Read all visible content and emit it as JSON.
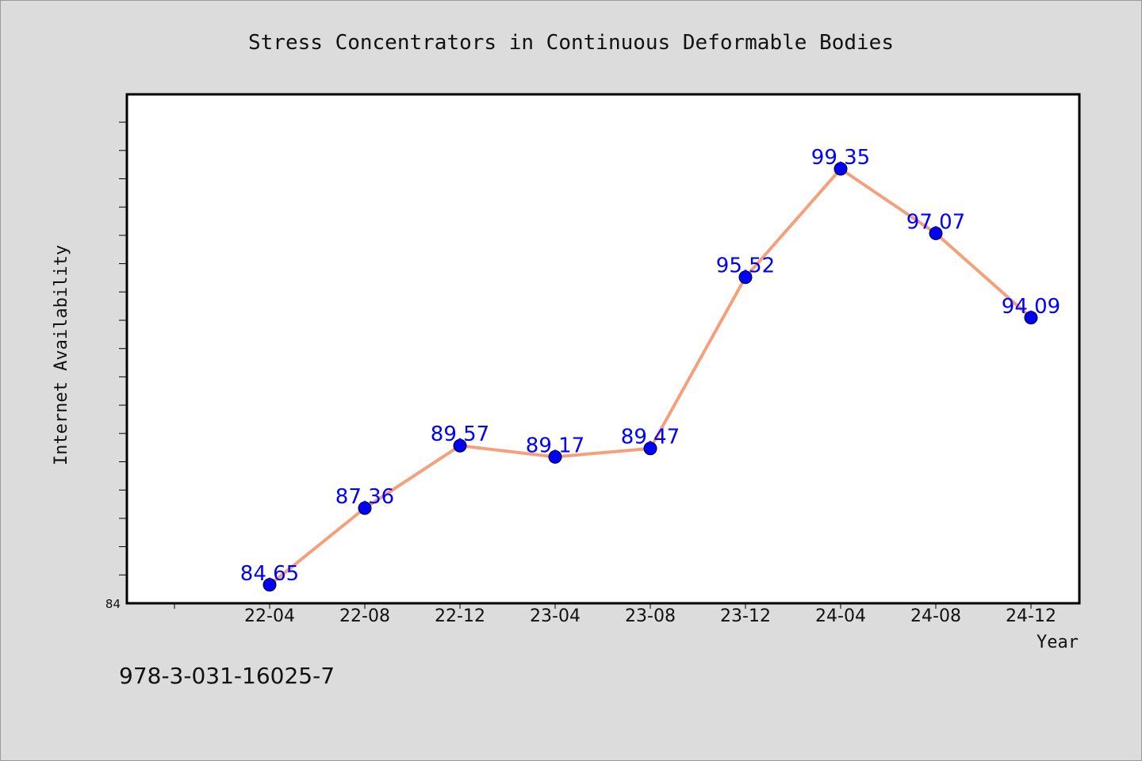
{
  "chart_data": {
    "type": "line",
    "title": "Stress Concentrators in Continuous Deformable Bodies",
    "xlabel": "Year",
    "ylabel": "Internet Availability",
    "categories": [
      "22-04",
      "22-08",
      "22-12",
      "23-04",
      "23-08",
      "23-12",
      "24-04",
      "24-08",
      "24-12"
    ],
    "series": [
      {
        "values": [
          84.65,
          87.36,
          89.57,
          89.17,
          89.47,
          95.52,
          99.35,
          97.07,
          94.09
        ]
      }
    ],
    "value_labels": [
      "84.65",
      "87.36",
      "89.57",
      "89.17",
      "89.47",
      "95.52",
      "99.35",
      "97.07",
      "94.09"
    ],
    "ylim": [
      84,
      102
    ],
    "y_tick_labels": [
      "84"
    ],
    "grid": false,
    "legend": "none",
    "colors": {
      "line": "#f4a07c",
      "marker": "#0000ff",
      "data_label": "#0000ff",
      "plot_background": "#ffffff",
      "page_background": "#dcdcdc"
    }
  },
  "footer": {
    "isbn": "978-3-031-16025-7"
  }
}
